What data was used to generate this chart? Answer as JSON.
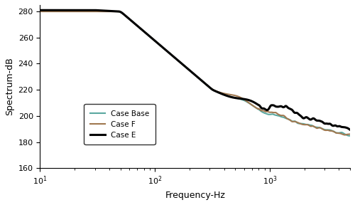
{
  "title": "",
  "xlabel": "Frequency-Hz",
  "ylabel": "Spectrum-dB",
  "xlim": [
    10,
    5000
  ],
  "ylim": [
    160,
    285
  ],
  "yticks": [
    160,
    180,
    200,
    220,
    240,
    260,
    280
  ],
  "legend": [
    "Case Base",
    "Case F",
    "Case E"
  ],
  "colors": [
    "#5BA8A0",
    "#A07850",
    "#000000"
  ],
  "linewidths": [
    1.5,
    1.5,
    2.2
  ],
  "background": "#ffffff"
}
